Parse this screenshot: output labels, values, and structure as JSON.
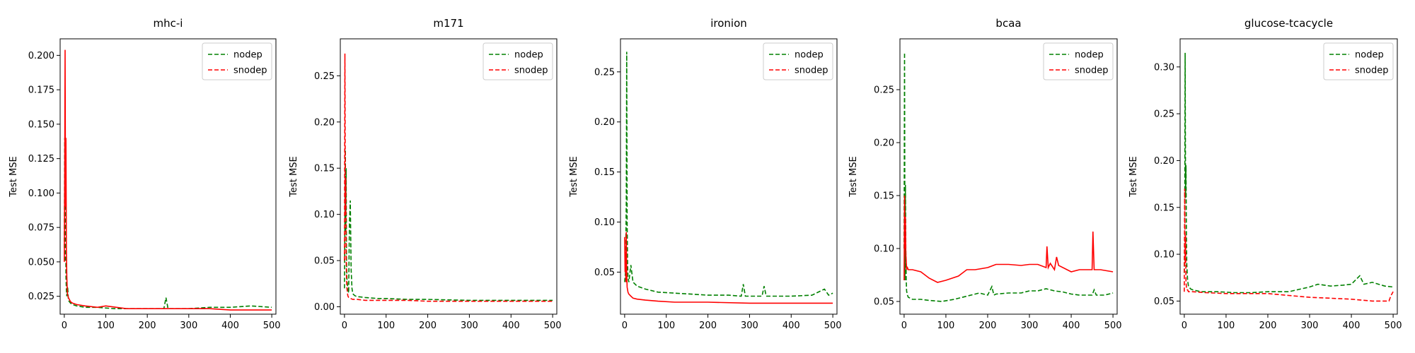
{
  "chart_data": [
    {
      "type": "line",
      "title": "mhc-i",
      "xlabel": "",
      "ylabel": "Test MSE",
      "xlim": [
        -10,
        510
      ],
      "ylim": [
        0.012,
        0.212
      ],
      "xticks": [
        0,
        100,
        200,
        300,
        400,
        500
      ],
      "yticks": [
        0.025,
        0.05,
        0.075,
        0.1,
        0.125,
        0.15,
        0.175,
        0.2
      ],
      "ytick_labels": [
        "0.025",
        "0.050",
        "0.075",
        "0.100",
        "0.125",
        "0.150",
        "0.175",
        "0.200"
      ],
      "legend_position": "top-right",
      "series": [
        {
          "name": "nodep",
          "color": "#008000",
          "dash": "dashed",
          "x": [
            0,
            1,
            2,
            3,
            4,
            5,
            6,
            8,
            10,
            15,
            20,
            30,
            50,
            80,
            120,
            160,
            200,
            240,
            245,
            250,
            260,
            300,
            350,
            400,
            450,
            500
          ],
          "y": [
            0.06,
            0.14,
            0.05,
            0.11,
            0.04,
            0.03,
            0.025,
            0.032,
            0.022,
            0.02,
            0.019,
            0.018,
            0.017,
            0.017,
            0.016,
            0.016,
            0.016,
            0.016,
            0.024,
            0.016,
            0.016,
            0.016,
            0.017,
            0.017,
            0.018,
            0.017
          ]
        },
        {
          "name": "snodep",
          "color": "#ff0000",
          "dash": "solid",
          "x": [
            0,
            1,
            2,
            3,
            4,
            5,
            6,
            7,
            8,
            10,
            15,
            20,
            30,
            50,
            80,
            100,
            150,
            200,
            250,
            300,
            350,
            400,
            450,
            500
          ],
          "y": [
            0.05,
            0.12,
            0.204,
            0.09,
            0.14,
            0.06,
            0.04,
            0.03,
            0.026,
            0.024,
            0.021,
            0.02,
            0.019,
            0.018,
            0.017,
            0.018,
            0.016,
            0.016,
            0.016,
            0.016,
            0.016,
            0.015,
            0.015,
            0.015
          ]
        }
      ]
    },
    {
      "type": "line",
      "title": "m171",
      "xlabel": "",
      "ylabel": "Test MSE",
      "xlim": [
        -10,
        510
      ],
      "ylim": [
        -0.008,
        0.29
      ],
      "xticks": [
        0,
        100,
        200,
        300,
        400,
        500
      ],
      "yticks": [
        0.0,
        0.05,
        0.1,
        0.15,
        0.2,
        0.25
      ],
      "ytick_labels": [
        "0.00",
        "0.05",
        "0.10",
        "0.15",
        "0.20",
        "0.25"
      ],
      "legend_position": "top-right",
      "series": [
        {
          "name": "nodep",
          "color": "#008000",
          "dash": "dashed",
          "x": [
            0,
            2,
            3,
            4,
            5,
            6,
            8,
            10,
            12,
            14,
            16,
            18,
            20,
            25,
            30,
            50,
            80,
            100,
            150,
            200,
            300,
            400,
            500
          ],
          "y": [
            0.02,
            0.17,
            0.08,
            0.15,
            0.05,
            0.03,
            0.02,
            0.015,
            0.09,
            0.115,
            0.04,
            0.02,
            0.014,
            0.012,
            0.011,
            0.01,
            0.009,
            0.009,
            0.008,
            0.008,
            0.007,
            0.007,
            0.007
          ]
        },
        {
          "name": "snodep",
          "color": "#ff0000",
          "dash": "dashed",
          "x": [
            0,
            1,
            2,
            3,
            4,
            5,
            6,
            8,
            10,
            15,
            20,
            30,
            50,
            100,
            150,
            200,
            300,
            400,
            500
          ],
          "y": [
            0.05,
            0.274,
            0.1,
            0.14,
            0.06,
            0.03,
            0.02,
            0.012,
            0.01,
            0.009,
            0.008,
            0.008,
            0.007,
            0.007,
            0.007,
            0.006,
            0.006,
            0.006,
            0.006
          ]
        }
      ]
    },
    {
      "type": "line",
      "title": "ironion",
      "xlabel": "",
      "ylabel": "Test MSE",
      "xlim": [
        -10,
        510
      ],
      "ylim": [
        0.008,
        0.283
      ],
      "xticks": [
        0,
        100,
        200,
        300,
        400,
        500
      ],
      "yticks": [
        0.05,
        0.1,
        0.15,
        0.2,
        0.25
      ],
      "ytick_labels": [
        "0.05",
        "0.10",
        "0.15",
        "0.20",
        "0.25"
      ],
      "legend_position": "top-right",
      "series": [
        {
          "name": "nodep",
          "color": "#008000",
          "dash": "dashed",
          "x": [
            0,
            2,
            4,
            5,
            6,
            7,
            8,
            10,
            15,
            20,
            30,
            50,
            80,
            120,
            160,
            200,
            250,
            280,
            285,
            290,
            300,
            330,
            335,
            340,
            400,
            450,
            480,
            490,
            500
          ],
          "y": [
            0.04,
            0.05,
            0.12,
            0.27,
            0.1,
            0.06,
            0.045,
            0.04,
            0.057,
            0.04,
            0.036,
            0.033,
            0.03,
            0.029,
            0.028,
            0.027,
            0.027,
            0.026,
            0.038,
            0.026,
            0.026,
            0.026,
            0.036,
            0.026,
            0.026,
            0.027,
            0.033,
            0.027,
            0.029
          ]
        },
        {
          "name": "snodep",
          "color": "#ff0000",
          "dash": "solid",
          "x": [
            0,
            1,
            2,
            3,
            4,
            5,
            6,
            8,
            10,
            15,
            20,
            30,
            50,
            80,
            120,
            200,
            300,
            400,
            500
          ],
          "y": [
            0.085,
            0.05,
            0.07,
            0.04,
            0.09,
            0.05,
            0.035,
            0.03,
            0.028,
            0.026,
            0.024,
            0.023,
            0.022,
            0.021,
            0.02,
            0.02,
            0.019,
            0.019,
            0.019
          ]
        }
      ]
    },
    {
      "type": "line",
      "title": "bcaa",
      "xlabel": "",
      "ylabel": "Test MSE",
      "xlim": [
        -10,
        510
      ],
      "ylim": [
        0.038,
        0.298
      ],
      "xticks": [
        0,
        100,
        200,
        300,
        400,
        500
      ],
      "yticks": [
        0.05,
        0.1,
        0.15,
        0.2,
        0.25
      ],
      "ytick_labels": [
        "0.05",
        "0.10",
        "0.15",
        "0.20",
        "0.25"
      ],
      "legend_position": "top-right",
      "series": [
        {
          "name": "nodep",
          "color": "#008000",
          "dash": "dashed",
          "x": [
            0,
            1,
            2,
            3,
            4,
            5,
            6,
            8,
            10,
            15,
            20,
            40,
            60,
            90,
            120,
            150,
            180,
            200,
            210,
            215,
            220,
            250,
            280,
            300,
            320,
            340,
            360,
            380,
            400,
            420,
            450,
            455,
            460,
            480,
            500
          ],
          "y": [
            0.1,
            0.285,
            0.07,
            0.16,
            0.1,
            0.07,
            0.06,
            0.056,
            0.054,
            0.053,
            0.052,
            0.052,
            0.051,
            0.05,
            0.052,
            0.055,
            0.058,
            0.056,
            0.064,
            0.056,
            0.057,
            0.058,
            0.058,
            0.06,
            0.06,
            0.062,
            0.06,
            0.059,
            0.057,
            0.056,
            0.056,
            0.061,
            0.056,
            0.056,
            0.058
          ]
        },
        {
          "name": "snodep",
          "color": "#ff0000",
          "dash": "solid",
          "x": [
            0,
            1,
            2,
            3,
            4,
            5,
            6,
            8,
            10,
            20,
            40,
            60,
            80,
            100,
            130,
            150,
            170,
            200,
            220,
            250,
            280,
            300,
            320,
            340,
            342,
            345,
            350,
            360,
            365,
            370,
            390,
            400,
            420,
            450,
            452,
            455,
            470,
            500
          ],
          "y": [
            0.07,
            0.15,
            0.1,
            0.13,
            0.095,
            0.088,
            0.08,
            0.082,
            0.08,
            0.08,
            0.078,
            0.072,
            0.068,
            0.07,
            0.074,
            0.08,
            0.08,
            0.082,
            0.085,
            0.085,
            0.084,
            0.085,
            0.085,
            0.082,
            0.102,
            0.082,
            0.086,
            0.08,
            0.092,
            0.084,
            0.08,
            0.078,
            0.08,
            0.08,
            0.116,
            0.08,
            0.08,
            0.078
          ]
        }
      ]
    },
    {
      "type": "line",
      "title": "glucose-tcacycle",
      "xlabel": "",
      "ylabel": "Test MSE",
      "xlim": [
        -10,
        510
      ],
      "ylim": [
        0.036,
        0.33
      ],
      "xticks": [
        0,
        100,
        200,
        300,
        400,
        500
      ],
      "yticks": [
        0.05,
        0.1,
        0.15,
        0.2,
        0.25,
        0.3
      ],
      "ytick_labels": [
        "0.05",
        "0.10",
        "0.15",
        "0.20",
        "0.25",
        "0.30"
      ],
      "legend_position": "top-right",
      "series": [
        {
          "name": "nodep",
          "color": "#008000",
          "dash": "dashed",
          "x": [
            0,
            1,
            2,
            3,
            4,
            5,
            6,
            8,
            10,
            15,
            20,
            40,
            80,
            120,
            160,
            200,
            250,
            300,
            320,
            350,
            380,
            400,
            420,
            430,
            450,
            480,
            500
          ],
          "y": [
            0.08,
            0.12,
            0.315,
            0.16,
            0.195,
            0.12,
            0.09,
            0.072,
            0.066,
            0.063,
            0.062,
            0.06,
            0.06,
            0.059,
            0.059,
            0.06,
            0.06,
            0.065,
            0.068,
            0.066,
            0.067,
            0.068,
            0.077,
            0.068,
            0.07,
            0.066,
            0.065
          ]
        },
        {
          "name": "snodep",
          "color": "#ff0000",
          "dash": "dashed",
          "x": [
            0,
            1,
            2,
            3,
            4,
            5,
            6,
            8,
            10,
            20,
            50,
            100,
            150,
            200,
            250,
            300,
            350,
            400,
            450,
            480,
            490,
            495,
            500
          ],
          "y": [
            0.06,
            0.17,
            0.09,
            0.12,
            0.07,
            0.065,
            0.062,
            0.062,
            0.06,
            0.06,
            0.059,
            0.058,
            0.058,
            0.058,
            0.056,
            0.054,
            0.053,
            0.052,
            0.05,
            0.05,
            0.05,
            0.056,
            0.06
          ]
        }
      ]
    }
  ]
}
